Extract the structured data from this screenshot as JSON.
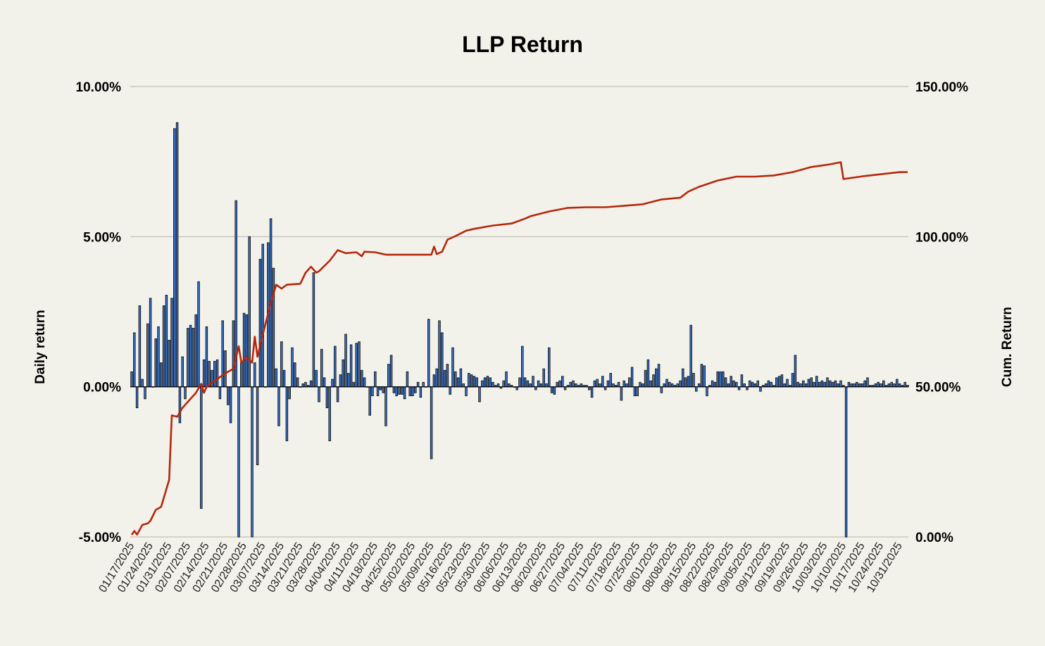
{
  "chart_data": {
    "type": "bar+line",
    "title": "LLP Return",
    "start_date": "01/17/2025",
    "left_axis": {
      "label": "Daily return",
      "range": [
        -5,
        10
      ],
      "ticks": [
        "-5.00%",
        "0.00%",
        "5.00%",
        "10.00%"
      ],
      "tick_values": [
        -5,
        0,
        5,
        10
      ]
    },
    "right_axis": {
      "label": "Cum. Return",
      "range": [
        0,
        150
      ],
      "ticks": [
        "0.00%",
        "50.00%",
        "100.00%",
        "150.00%"
      ],
      "tick_values": [
        0,
        50,
        100,
        150
      ]
    },
    "grid": true,
    "x_tick_labels": [
      "01/17/2025",
      "01/24/2025",
      "01/31/2025",
      "02/07/2025",
      "02/14/2025",
      "02/21/2025",
      "02/28/2025",
      "03/07/2025",
      "03/14/2025",
      "03/21/2025",
      "03/28/2025",
      "04/04/2025",
      "04/11/2025",
      "04/18/2025",
      "04/25/2025",
      "05/02/2025",
      "05/09/2025",
      "05/16/2025",
      "05/23/2025",
      "05/30/2025",
      "06/06/2025",
      "06/13/2025",
      "06/20/2025",
      "06/27/2025",
      "07/04/2025",
      "07/11/2025",
      "07/18/2025",
      "07/25/2025",
      "08/01/2025",
      "08/08/2025",
      "08/15/2025",
      "08/22/2025",
      "08/29/2025",
      "09/05/2025",
      "09/12/2025",
      "09/19/2025",
      "09/26/2025",
      "10/03/2025",
      "10/10/2025",
      "10/17/2025",
      "10/24/2025",
      "10/31/2025"
    ],
    "series": [
      {
        "name": "Daily return",
        "type": "bar",
        "axis": "left",
        "color": "#3a78d6",
        "values": [
          0.5,
          1.8,
          -0.7,
          2.7,
          0.25,
          -0.4,
          2.1,
          2.95,
          0,
          1.6,
          2.0,
          0.8,
          2.7,
          3.05,
          1.55,
          2.95,
          8.6,
          8.8,
          -1.2,
          1.0,
          -0.4,
          1.95,
          2.05,
          1.95,
          2.4,
          3.5,
          -4.05,
          0.9,
          2.0,
          0.85,
          0.55,
          0.85,
          0.9,
          -0.4,
          2.2,
          1.2,
          -0.6,
          -1.2,
          2.2,
          6.2,
          -6,
          0.8,
          2.45,
          2.4,
          5.0,
          -6,
          0.8,
          -2.6,
          4.25,
          4.75,
          0,
          4.8,
          5.6,
          3.95,
          0.6,
          -1.3,
          1.5,
          0.55,
          -1.8,
          -0.4,
          1.3,
          0.8,
          0.3,
          0,
          0.1,
          0.15,
          0.05,
          0.2,
          3.8,
          0.55,
          -0.5,
          1.25,
          0.3,
          -0.7,
          -1.8,
          0.25,
          1.35,
          -0.5,
          0.4,
          0.9,
          1.75,
          0.45,
          1.4,
          0.15,
          1.45,
          1.5,
          0.55,
          0.3,
          0,
          -0.95,
          -0.3,
          0.5,
          -0.3,
          -0.1,
          -0.2,
          -1.3,
          0.75,
          1.05,
          -0.2,
          -0.3,
          -0.25,
          -0.25,
          -0.4,
          0.5,
          -0.3,
          -0.3,
          -0.2,
          0.15,
          -0.35,
          0.15,
          0,
          2.25,
          -2.4,
          0.4,
          0.6,
          2.2,
          1.8,
          0.55,
          0.75,
          -0.25,
          1.3,
          0.5,
          0.3,
          0.6,
          0.1,
          -0.3,
          0.45,
          0.4,
          0.35,
          0.3,
          -0.5,
          0.2,
          0.3,
          0.35,
          0.3,
          0.15,
          0.05,
          0.1,
          -0.05,
          0.2,
          0.5,
          0.1,
          0.05,
          0,
          -0.1,
          0.3,
          1.35,
          0.3,
          0.2,
          0.1,
          0.35,
          -0.1,
          0.2,
          0.1,
          0.6,
          0.1,
          1.3,
          -0.2,
          -0.25,
          0.15,
          0.2,
          0.35,
          -0.1,
          0.05,
          0.15,
          0.2,
          0.1,
          0.05,
          0.1,
          0.05,
          0.05,
          -0.1,
          -0.35,
          0.2,
          0.25,
          0.1,
          0.35,
          -0.1,
          0.2,
          0.45,
          0.1,
          0.05,
          0.15,
          -0.45,
          0.2,
          0.1,
          0.3,
          0.65,
          -0.3,
          -0.3,
          0.15,
          0.1,
          0.55,
          0.9,
          0.2,
          0.4,
          0.6,
          0.75,
          -0.2,
          0.1,
          0.25,
          0.15,
          0.1,
          0.05,
          0.1,
          0.2,
          0.6,
          0.3,
          0.35,
          2.05,
          0.45,
          -0.15,
          0.1,
          0.75,
          0.7,
          -0.3,
          0.05,
          0.2,
          0.15,
          0.5,
          0.5,
          0.5,
          0.3,
          0.1,
          0.35,
          0.2,
          0.15,
          -0.1,
          0.4,
          0.1,
          -0.1,
          0.2,
          0.15,
          0.1,
          0.2,
          -0.15,
          0.05,
          0.1,
          0.2,
          0.15,
          0.05,
          0.3,
          0.35,
          0.4,
          0.1,
          0.25,
          0.05,
          0.45,
          1.05,
          0.15,
          0.1,
          0.2,
          0.1,
          0.25,
          0.3,
          0.15,
          0.35,
          0.15,
          0.2,
          0.15,
          0.3,
          0.2,
          0.15,
          0.2,
          0.1,
          0.2,
          0.05,
          -6,
          0.15,
          0.1,
          0.1,
          0.15,
          0.1,
          0.1,
          0.2,
          0.3,
          0.05,
          0.05,
          0.1,
          0.15,
          0.1,
          0.2,
          0.05,
          0.1,
          0.15,
          0.1,
          0.25,
          0.1,
          0.05,
          0.15,
          0.05
        ]
      },
      {
        "name": "Cum. Return",
        "type": "line",
        "axis": "right",
        "color": "#b5270c",
        "points_day_value": [
          [
            0,
            0.7
          ],
          [
            1,
            2
          ],
          [
            2,
            0.8
          ],
          [
            4,
            4
          ],
          [
            6,
            4.5
          ],
          [
            7,
            5.4
          ],
          [
            9,
            9
          ],
          [
            11,
            10
          ],
          [
            12,
            13
          ],
          [
            14,
            19
          ],
          [
            15,
            40.5
          ],
          [
            17,
            40
          ],
          [
            19,
            43
          ],
          [
            21,
            45
          ],
          [
            24,
            48
          ],
          [
            26,
            51
          ],
          [
            27,
            48
          ],
          [
            28,
            50
          ],
          [
            31,
            52
          ],
          [
            35,
            54.5
          ],
          [
            38,
            56
          ],
          [
            40,
            63.5
          ],
          [
            41,
            58
          ],
          [
            43,
            60
          ],
          [
            45,
            58
          ],
          [
            46,
            66.7
          ],
          [
            47,
            60
          ],
          [
            49,
            67.4
          ],
          [
            52,
            78
          ],
          [
            54,
            84
          ],
          [
            56,
            82.7
          ],
          [
            58,
            84
          ],
          [
            63,
            84.3
          ],
          [
            65,
            88
          ],
          [
            67,
            90
          ],
          [
            69,
            88
          ],
          [
            70,
            88.5
          ],
          [
            74,
            92
          ],
          [
            77,
            95.5
          ],
          [
            80,
            94.5
          ],
          [
            84,
            94.8
          ],
          [
            86,
            93.5
          ],
          [
            87,
            95
          ],
          [
            91,
            94.8
          ],
          [
            95,
            94
          ],
          [
            99,
            94
          ],
          [
            112,
            94
          ],
          [
            113,
            96.7
          ],
          [
            114,
            94.2
          ],
          [
            116,
            95
          ],
          [
            118,
            99
          ],
          [
            121,
            100.2
          ],
          [
            125,
            102
          ],
          [
            128,
            102.6
          ],
          [
            135,
            103.7
          ],
          [
            142,
            104.4
          ],
          [
            147,
            106
          ],
          [
            149,
            106.8
          ],
          [
            156,
            108.4
          ],
          [
            163,
            109.6
          ],
          [
            170,
            109.8
          ],
          [
            177,
            109.8
          ],
          [
            184,
            110.3
          ],
          [
            191,
            110.8
          ],
          [
            198,
            112.4
          ],
          [
            205,
            113
          ],
          [
            208,
            115
          ],
          [
            212,
            116.6
          ],
          [
            219,
            118.7
          ],
          [
            226,
            120
          ],
          [
            233,
            120
          ],
          [
            240,
            120.4
          ],
          [
            247,
            121.5
          ],
          [
            254,
            123.2
          ],
          [
            261,
            124.1
          ],
          [
            265,
            124.8
          ],
          [
            266,
            119.2
          ],
          [
            273,
            120.1
          ],
          [
            280,
            120.8
          ],
          [
            287,
            121.5
          ],
          [
            290,
            121.5
          ]
        ]
      }
    ]
  }
}
